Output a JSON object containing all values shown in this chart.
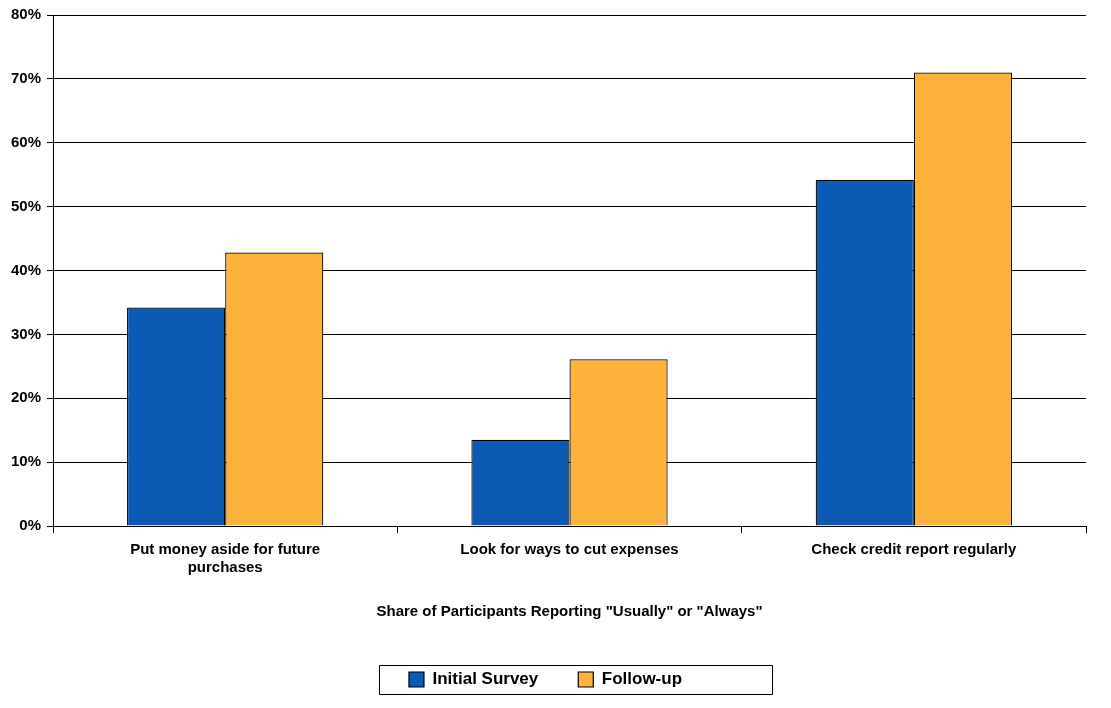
{
  "chart_data": {
    "type": "bar",
    "xlabel": "Share of Participants Reporting \"Usually\" or \"Always\"",
    "categories": [
      "Put money aside for future purchases",
      "Look for ways to cut expenses",
      "Check credit report regularly"
    ],
    "series": [
      {
        "name": "Initial Survey",
        "color": "#0b5ab4",
        "values": [
          34.2,
          13.5,
          54.2
        ]
      },
      {
        "name": "Follow-up",
        "color": "#fdb23b",
        "values": [
          42.8,
          26.1,
          71
        ]
      }
    ],
    "ylim": [
      0,
      80
    ],
    "yticks": [
      {
        "value": 0,
        "label": "0%"
      },
      {
        "value": 10,
        "label": "10%"
      },
      {
        "value": 20,
        "label": "20%"
      },
      {
        "value": 30,
        "label": "30%"
      },
      {
        "value": 40,
        "label": "40%"
      },
      {
        "value": 50,
        "label": "50%"
      },
      {
        "value": 60,
        "label": "60%"
      },
      {
        "value": 70,
        "label": "70%"
      },
      {
        "value": 80,
        "label": "80%"
      }
    ],
    "grid": "y",
    "legend": "bottom"
  }
}
